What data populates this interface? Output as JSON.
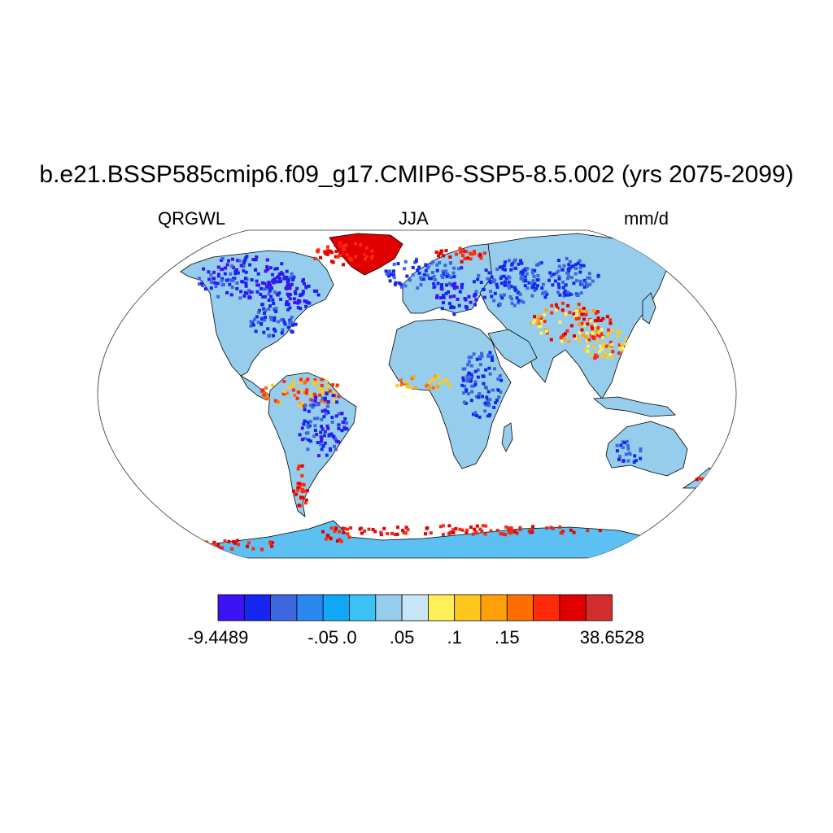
{
  "title": "b.e21.BSSP585cmip6.f09_g17.CMIP6-SSP5-8.5.002 (yrs 2075-2099)",
  "subtitle_left": "QRGWL",
  "subtitle_center": "JJA",
  "subtitle_right": "mm/d",
  "colorbar": {
    "colors": [
      "#3d12f5",
      "#1526f2",
      "#3d67e0",
      "#2a88f0",
      "#11a8f8",
      "#3ac2f5",
      "#96cdec",
      "#c8e6f7",
      "#fff05a",
      "#ffc81e",
      "#ffa00a",
      "#ff6e00",
      "#ff2a0a",
      "#e10000",
      "#d22d2d"
    ],
    "labels": [
      {
        "text": "-9.4489",
        "boundary": 0
      },
      {
        "text": "-.05",
        "boundary": 4
      },
      {
        "text": ".0",
        "boundary": 5
      },
      {
        "text": ".05",
        "boundary": 7
      },
      {
        "text": ".1",
        "boundary": 9
      },
      {
        "text": ".15",
        "boundary": 11
      },
      {
        "text": "38.6528",
        "boundary": 15
      }
    ]
  },
  "map": {
    "projection": "robinson",
    "ocean_color": "#ffffff",
    "land_base_color": "#96cdec",
    "antarctica_color": "#5cc0f2",
    "coastline_color": "#000000"
  }
}
